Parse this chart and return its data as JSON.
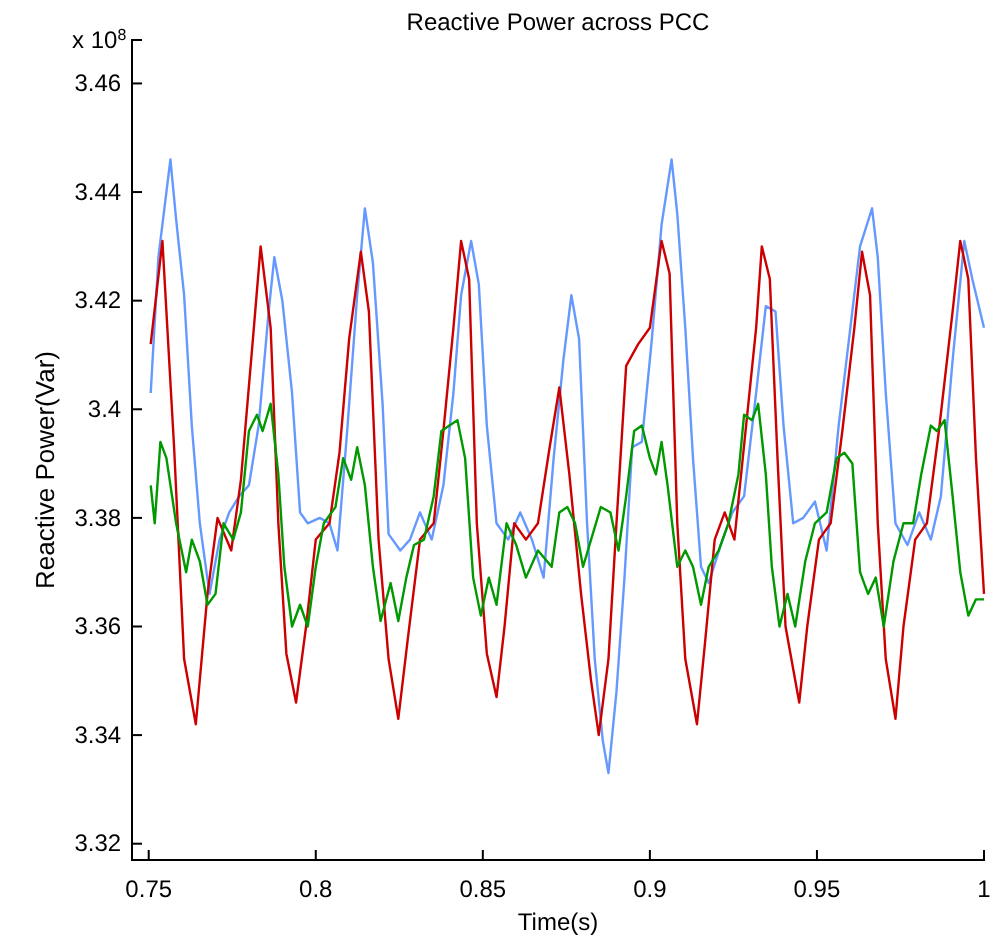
{
  "chart_data": {
    "type": "line",
    "title": "Reactive Power across PCC",
    "xlabel": "Time(s)",
    "ylabel": "Reactive Power(Var)",
    "annotations": [
      "x 10$^{8}$"
    ],
    "xlim": [
      0.745,
      1.0
    ],
    "xticks": [
      0.75,
      0.8,
      0.85,
      0.9,
      0.95,
      1
    ],
    "ylim": [
      3.317,
      3.468
    ],
    "yticks": [
      3.32,
      3.34,
      3.36,
      3.38,
      3.4,
      3.42,
      3.44,
      3.46
    ],
    "grid": false,
    "marker": "none",
    "line_style": "solid",
    "series": [
      {
        "color": "#6699ff",
        "x": [
          0.7506,
          0.7529,
          0.7565,
          0.7582,
          0.7606,
          0.7629,
          0.7653,
          0.7682,
          0.7712,
          0.7741,
          0.7771,
          0.78,
          0.7829,
          0.7859,
          0.7876,
          0.79,
          0.7929,
          0.7953,
          0.7976,
          0.8012,
          0.8041,
          0.8065,
          0.8094,
          0.8124,
          0.8147,
          0.8171,
          0.82,
          0.8218,
          0.8253,
          0.8282,
          0.8312,
          0.8347,
          0.8382,
          0.8412,
          0.8435,
          0.8465,
          0.8488,
          0.8512,
          0.8541,
          0.8576,
          0.8612,
          0.8647,
          0.8682,
          0.8712,
          0.8741,
          0.8765,
          0.8788,
          0.8812,
          0.8835,
          0.8859,
          0.8876,
          0.89,
          0.8924,
          0.8947,
          0.8976,
          0.9006,
          0.9035,
          0.9065,
          0.9082,
          0.9106,
          0.9129,
          0.9153,
          0.9176,
          0.9212,
          0.9247,
          0.9282,
          0.9318,
          0.9347,
          0.9376,
          0.94,
          0.9429,
          0.9459,
          0.9494,
          0.9529,
          0.9565,
          0.96,
          0.9629,
          0.9665,
          0.9682,
          0.9706,
          0.9735,
          0.9771,
          0.9806,
          0.9841,
          0.9871,
          0.9906,
          0.9941,
          0.9965,
          1.0
        ],
        "values": [
          3.403,
          3.428,
          3.446,
          3.435,
          3.421,
          3.397,
          3.379,
          3.366,
          3.376,
          3.381,
          3.384,
          3.386,
          3.397,
          3.418,
          3.428,
          3.42,
          3.403,
          3.381,
          3.379,
          3.38,
          3.379,
          3.374,
          3.396,
          3.421,
          3.437,
          3.427,
          3.401,
          3.377,
          3.374,
          3.376,
          3.381,
          3.376,
          3.386,
          3.403,
          3.421,
          3.431,
          3.423,
          3.397,
          3.379,
          3.376,
          3.381,
          3.376,
          3.369,
          3.391,
          3.409,
          3.421,
          3.413,
          3.379,
          3.354,
          3.339,
          3.333,
          3.348,
          3.369,
          3.393,
          3.394,
          3.413,
          3.434,
          3.446,
          3.436,
          3.415,
          3.391,
          3.371,
          3.368,
          3.375,
          3.381,
          3.384,
          3.403,
          3.419,
          3.418,
          3.397,
          3.379,
          3.38,
          3.383,
          3.374,
          3.397,
          3.415,
          3.43,
          3.437,
          3.428,
          3.403,
          3.379,
          3.375,
          3.381,
          3.376,
          3.384,
          3.409,
          3.431,
          3.424,
          3.415
        ]
      },
      {
        "color": "#cc0000",
        "x": [
          0.7506,
          0.7541,
          0.7576,
          0.7606,
          0.7641,
          0.7676,
          0.7706,
          0.7747,
          0.7776,
          0.7812,
          0.7835,
          0.7865,
          0.7888,
          0.7912,
          0.7941,
          0.7971,
          0.8,
          0.8041,
          0.8071,
          0.81,
          0.8135,
          0.8159,
          0.8188,
          0.8218,
          0.8247,
          0.8276,
          0.8312,
          0.8353,
          0.8382,
          0.8412,
          0.8435,
          0.8459,
          0.8482,
          0.8512,
          0.8541,
          0.8565,
          0.8594,
          0.8629,
          0.8665,
          0.87,
          0.8729,
          0.8759,
          0.8794,
          0.8824,
          0.8847,
          0.8876,
          0.89,
          0.8929,
          0.8965,
          0.9,
          0.9035,
          0.9059,
          0.9082,
          0.9106,
          0.9141,
          0.9165,
          0.9194,
          0.9224,
          0.9253,
          0.9288,
          0.9318,
          0.9335,
          0.9359,
          0.9382,
          0.9406,
          0.9447,
          0.9471,
          0.9506,
          0.9541,
          0.9576,
          0.9612,
          0.9635,
          0.9659,
          0.9682,
          0.9706,
          0.9735,
          0.9759,
          0.9794,
          0.9829,
          0.9865,
          0.9906,
          0.9929,
          0.9953,
          0.9976,
          1.0
        ],
        "values": [
          3.412,
          3.431,
          3.393,
          3.354,
          3.342,
          3.366,
          3.38,
          3.374,
          3.387,
          3.413,
          3.43,
          3.415,
          3.379,
          3.355,
          3.346,
          3.36,
          3.376,
          3.379,
          3.392,
          3.413,
          3.429,
          3.418,
          3.376,
          3.354,
          3.343,
          3.358,
          3.376,
          3.379,
          3.396,
          3.415,
          3.431,
          3.424,
          3.379,
          3.355,
          3.347,
          3.36,
          3.379,
          3.376,
          3.379,
          3.393,
          3.404,
          3.388,
          3.366,
          3.35,
          3.34,
          3.354,
          3.379,
          3.408,
          3.412,
          3.415,
          3.431,
          3.425,
          3.379,
          3.354,
          3.342,
          3.357,
          3.376,
          3.381,
          3.376,
          3.397,
          3.415,
          3.43,
          3.424,
          3.391,
          3.36,
          3.346,
          3.36,
          3.376,
          3.379,
          3.396,
          3.415,
          3.429,
          3.421,
          3.379,
          3.354,
          3.343,
          3.36,
          3.376,
          3.379,
          3.396,
          3.418,
          3.431,
          3.424,
          3.391,
          3.366
        ]
      },
      {
        "color": "#009900",
        "x": [
          0.7506,
          0.7518,
          0.7535,
          0.7553,
          0.7582,
          0.7612,
          0.7629,
          0.7653,
          0.7676,
          0.77,
          0.7724,
          0.7753,
          0.7776,
          0.78,
          0.7824,
          0.7841,
          0.7865,
          0.7888,
          0.7906,
          0.7929,
          0.7953,
          0.7976,
          0.8,
          0.8024,
          0.8059,
          0.8082,
          0.8106,
          0.8124,
          0.8147,
          0.8171,
          0.8194,
          0.8224,
          0.8247,
          0.8271,
          0.8294,
          0.8324,
          0.8353,
          0.8376,
          0.84,
          0.8424,
          0.8447,
          0.8471,
          0.8494,
          0.8518,
          0.8541,
          0.8571,
          0.86,
          0.8629,
          0.8665,
          0.8706,
          0.8729,
          0.8753,
          0.8776,
          0.88,
          0.8824,
          0.8853,
          0.8882,
          0.8906,
          0.8929,
          0.8953,
          0.8976,
          0.9,
          0.9018,
          0.9035,
          0.9053,
          0.9082,
          0.9106,
          0.9129,
          0.9153,
          0.9176,
          0.9206,
          0.9235,
          0.9265,
          0.9282,
          0.9306,
          0.9324,
          0.9347,
          0.9365,
          0.9388,
          0.9412,
          0.9435,
          0.9465,
          0.9494,
          0.9529,
          0.9559,
          0.9582,
          0.9606,
          0.9629,
          0.9653,
          0.9676,
          0.97,
          0.9729,
          0.9759,
          0.9788,
          0.9812,
          0.9841,
          0.9859,
          0.9882,
          0.9906,
          0.9929,
          0.9953,
          0.9976,
          1.0
        ],
        "values": [
          3.386,
          3.379,
          3.394,
          3.391,
          3.379,
          3.37,
          3.376,
          3.372,
          3.364,
          3.366,
          3.379,
          3.376,
          3.381,
          3.396,
          3.399,
          3.396,
          3.401,
          3.388,
          3.371,
          3.36,
          3.364,
          3.36,
          3.371,
          3.379,
          3.382,
          3.391,
          3.387,
          3.393,
          3.386,
          3.371,
          3.361,
          3.368,
          3.361,
          3.369,
          3.375,
          3.376,
          3.384,
          3.396,
          3.397,
          3.398,
          3.391,
          3.369,
          3.362,
          3.369,
          3.364,
          3.379,
          3.375,
          3.369,
          3.374,
          3.371,
          3.381,
          3.382,
          3.379,
          3.371,
          3.376,
          3.382,
          3.381,
          3.374,
          3.384,
          3.396,
          3.397,
          3.391,
          3.388,
          3.394,
          3.386,
          3.371,
          3.374,
          3.371,
          3.364,
          3.371,
          3.374,
          3.379,
          3.388,
          3.399,
          3.398,
          3.401,
          3.388,
          3.371,
          3.36,
          3.366,
          3.36,
          3.372,
          3.379,
          3.381,
          3.391,
          3.392,
          3.39,
          3.37,
          3.366,
          3.369,
          3.36,
          3.372,
          3.379,
          3.379,
          3.388,
          3.397,
          3.396,
          3.398,
          3.384,
          3.37,
          3.362,
          3.365,
          3.365
        ]
      }
    ]
  }
}
